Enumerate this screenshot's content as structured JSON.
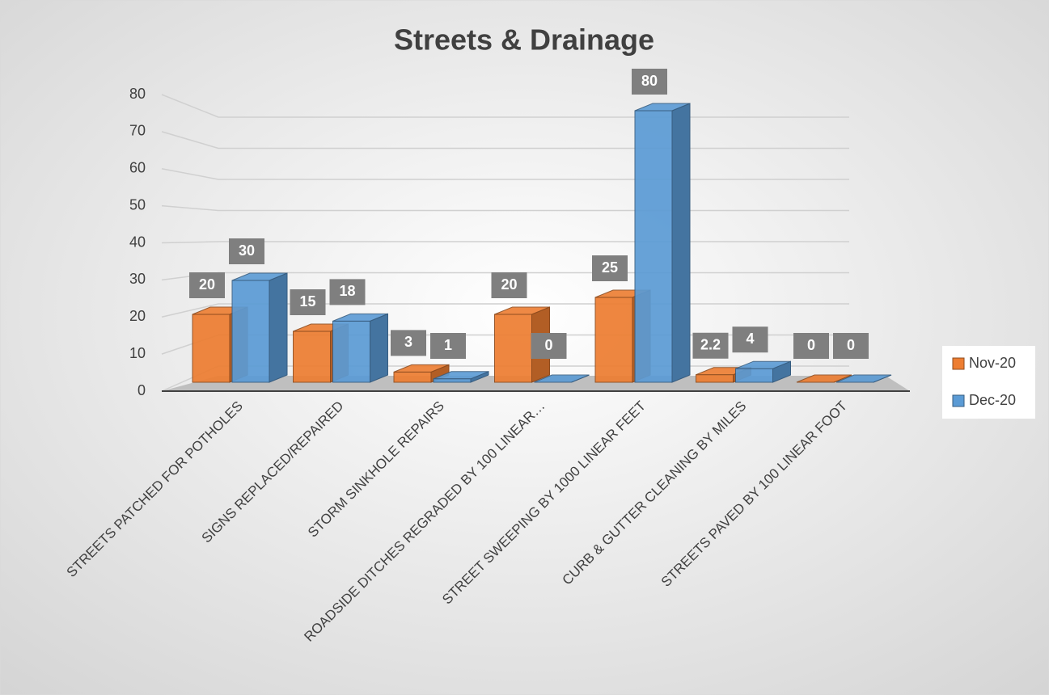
{
  "chart_data": {
    "type": "bar3d",
    "title": "Streets & Drainage",
    "categories": [
      "STREETS PATCHED FOR POTHOLES",
      "SIGNS REPLACED/REPAIRED",
      "STORM SINKHOLE REPAIRS",
      "ROADSIDE DITCHES REGRADED BY 100 LINEAR…",
      "STREET SWEEPING BY 1000 LINEAR FEET",
      "CURB & GUTTER CLEANING BY MILES",
      "STREETS PAVED BY 100 LINEAR FOOT"
    ],
    "series": [
      {
        "name": "Nov-20",
        "color": "#ed7d31",
        "values": [
          20,
          15,
          3,
          20,
          25,
          2.2,
          0
        ]
      },
      {
        "name": "Dec-20",
        "color": "#5b9bd5",
        "values": [
          30,
          18,
          1,
          0,
          80,
          4,
          0
        ]
      }
    ],
    "ylim": [
      0,
      80
    ],
    "yticks": [
      0,
      10,
      20,
      30,
      40,
      50,
      60,
      70,
      80
    ],
    "grid": true,
    "legend": "right"
  }
}
